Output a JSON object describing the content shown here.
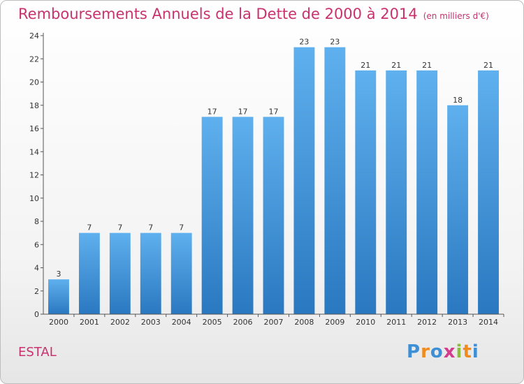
{
  "chart_data": {
    "type": "bar",
    "title": "Remboursements Annuels de la Dette de 2000 à 2014",
    "unit_note": "(en milliers d'€)",
    "xlabel": "",
    "ylabel": "",
    "categories": [
      "2000",
      "2001",
      "2002",
      "2003",
      "2004",
      "2005",
      "2006",
      "2007",
      "2008",
      "2009",
      "2010",
      "2011",
      "2012",
      "2013",
      "2014"
    ],
    "values": [
      3,
      7,
      7,
      7,
      7,
      17,
      17,
      17,
      23,
      23,
      21,
      21,
      21,
      18,
      21
    ],
    "ylim": [
      0,
      24
    ],
    "yticks": [
      0,
      2,
      4,
      6,
      8,
      10,
      12,
      14,
      16,
      18,
      20,
      22,
      24
    ],
    "grid": false,
    "bar_color": "#3d8fd6"
  },
  "place_name": "ESTAL",
  "logo": {
    "text": "Proxiti",
    "letters": [
      "P",
      "r",
      "o",
      "x",
      "i",
      "t",
      "i"
    ],
    "colors": [
      "#3d8fd6",
      "#f08c1e",
      "#3d8fd6",
      "#d23c8c",
      "#8cbe3c",
      "#f08c1e",
      "#3d8fd6"
    ]
  }
}
